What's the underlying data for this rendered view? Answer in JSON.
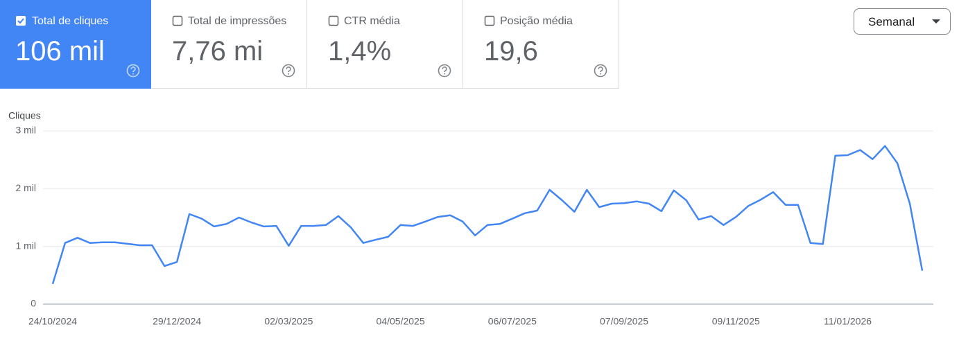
{
  "metrics": [
    {
      "label": "Total de cliques",
      "value": "106 mil",
      "checked": true
    },
    {
      "label": "Total de impressões",
      "value": "7,76 mi",
      "checked": false
    },
    {
      "label": "CTR média",
      "value": "1,4%",
      "checked": false
    },
    {
      "label": "Posição média",
      "value": "19,6",
      "checked": false
    }
  ],
  "period_selector": "Semanal",
  "chart_data": {
    "type": "line",
    "y_axis_label": "Cliques",
    "categories": [
      "24/10/2024",
      null,
      null,
      null,
      null,
      null,
      null,
      null,
      null,
      null,
      "29/12/2024",
      null,
      null,
      null,
      null,
      null,
      null,
      null,
      null,
      "02/03/2025",
      null,
      null,
      null,
      null,
      null,
      null,
      null,
      null,
      "04/05/2025",
      null,
      null,
      null,
      null,
      null,
      null,
      null,
      null,
      "06/07/2025",
      null,
      null,
      null,
      null,
      null,
      null,
      null,
      null,
      "07/09/2025",
      null,
      null,
      null,
      null,
      null,
      null,
      null,
      null,
      "09/11/2025",
      null,
      null,
      null,
      null,
      null,
      null,
      null,
      null,
      "11/01/2026",
      null,
      null,
      null,
      null,
      null,
      null
    ],
    "series": [
      {
        "name": "Cliques",
        "color": "#4285f4",
        "values": [
          350,
          1060,
          1150,
          1060,
          1070,
          1070,
          1045,
          1020,
          1020,
          660,
          730,
          1560,
          1480,
          1345,
          1390,
          1500,
          1415,
          1345,
          1355,
          1010,
          1355,
          1355,
          1370,
          1525,
          1330,
          1060,
          1115,
          1165,
          1370,
          1355,
          1430,
          1510,
          1540,
          1430,
          1190,
          1370,
          1390,
          1480,
          1575,
          1620,
          1980,
          1800,
          1600,
          1980,
          1680,
          1740,
          1750,
          1780,
          1740,
          1610,
          1970,
          1800,
          1465,
          1525,
          1370,
          1510,
          1700,
          1810,
          1940,
          1720,
          1720,
          1060,
          1040,
          2570,
          2580,
          2670,
          2510,
          2740,
          2440,
          1740,
          580
        ]
      }
    ],
    "ylim": [
      0,
      3000
    ],
    "yticks": [
      0,
      {
        "value": 1000,
        "label": "1 mil"
      },
      {
        "value": 2000,
        "label": "2 mil"
      },
      {
        "value": 3000,
        "label": "3 mil"
      }
    ],
    "grid": true
  }
}
